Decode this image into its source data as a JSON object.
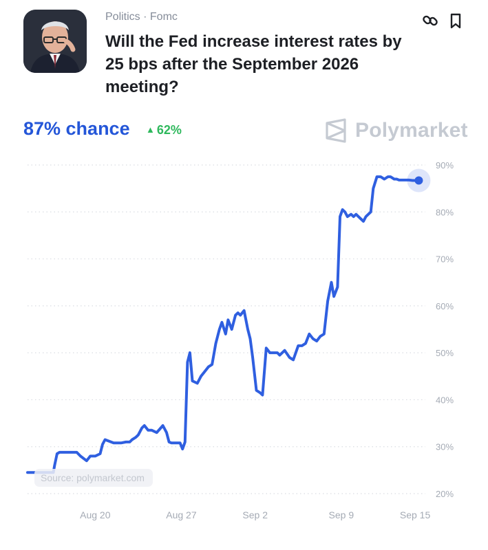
{
  "market": {
    "category": "Politics · Fomc",
    "title": "Will the Fed increase interest rates by 25 bps after the September 2026 meeting?",
    "chance_label": "87% chance",
    "chance_value": 87,
    "delta_label": "62%",
    "brand": "Polymarket",
    "source": "Source: polymarket.com"
  },
  "colors": {
    "line": "#2f5fe0",
    "chance": "#2456d8",
    "delta_up": "#2eb85c",
    "gridline": "#d9dce2",
    "tick_text": "#a4aab4"
  },
  "icons": {
    "link": "link-icon",
    "bookmark": "bookmark-icon",
    "brand": "polymarket-logo-icon"
  },
  "chart_data": {
    "type": "line",
    "x_tick_labels": [
      "Aug 20",
      "Aug 27",
      "Sep 2",
      "Sep 9",
      "Sep 15"
    ],
    "x_tick_days": [
      0,
      7,
      13,
      20,
      26
    ],
    "y_tick_labels": [
      "90%",
      "80%",
      "70%",
      "60%",
      "50%",
      "40%",
      "30%",
      "20%"
    ],
    "y_tick_values": [
      90,
      80,
      70,
      60,
      50,
      40,
      30,
      20
    ],
    "ylim": [
      20,
      90
    ],
    "xlim_days": [
      -5.5,
      26.5
    ],
    "grid": true,
    "series": [
      {
        "x": [
          -5.5,
          -3.4,
          -3.3,
          -3.1,
          -2.9,
          -2.5,
          -2.0,
          -1.5,
          -1.2,
          -0.7,
          -0.4,
          0.0,
          0.4,
          0.6,
          0.8,
          1.5,
          2.1,
          2.5,
          2.8,
          3.0,
          3.3,
          3.5,
          3.8,
          4.0,
          4.3,
          4.6,
          5.0,
          5.5,
          5.8,
          6.0,
          6.2,
          6.5,
          6.9,
          7.1,
          7.3,
          7.5,
          7.7,
          7.9,
          8.3,
          8.6,
          8.9,
          9.2,
          9.5,
          9.8,
          10.1,
          10.3,
          10.6,
          10.8,
          11.1,
          11.4,
          11.6,
          11.8,
          12.1,
          12.4,
          12.6,
          12.8,
          13.1,
          13.4,
          13.6,
          13.9,
          14.2,
          14.5,
          14.8,
          15.0,
          15.4,
          15.8,
          16.1,
          16.3,
          16.5,
          16.8,
          17.1,
          17.4,
          17.7,
          18.0,
          18.3,
          18.6,
          18.9,
          19.2,
          19.4,
          19.7,
          19.9,
          20.1,
          20.3,
          20.5,
          20.8,
          21.0,
          21.2,
          21.4,
          21.6,
          21.8,
          22.0,
          22.2,
          22.4,
          22.6,
          22.9,
          23.2,
          23.5,
          23.8,
          24.0,
          24.3,
          24.5,
          24.7,
          25.0,
          25.3,
          25.5,
          25.8,
          26.0,
          26.3
        ],
        "y": [
          24.5,
          24.5,
          26.0,
          28.5,
          28.8,
          28.8,
          28.8,
          28.8,
          28.0,
          27.0,
          28.0,
          28.0,
          28.5,
          30.5,
          31.5,
          30.8,
          30.8,
          31.0,
          31.0,
          31.5,
          32.0,
          32.5,
          34.0,
          34.5,
          33.5,
          33.5,
          33.0,
          34.5,
          33.0,
          31.0,
          30.8,
          30.8,
          30.8,
          29.5,
          31.0,
          48.0,
          50.0,
          44.0,
          43.5,
          45.0,
          46.0,
          47.0,
          47.5,
          52.0,
          55.0,
          56.5,
          54.0,
          57.0,
          55.0,
          58.0,
          58.5,
          58.0,
          59.0,
          55.0,
          53.0,
          49.0,
          42.0,
          41.5,
          41.0,
          51.0,
          50.0,
          50.0,
          50.0,
          49.5,
          50.5,
          49.0,
          48.5,
          50.0,
          51.5,
          51.5,
          52.0,
          54.0,
          53.0,
          52.5,
          53.5,
          54.0,
          61.0,
          65.0,
          62.0,
          64.0,
          79.0,
          80.5,
          80.0,
          79.0,
          79.5,
          79.0,
          79.5,
          79.0,
          78.5,
          78.0,
          79.0,
          79.5,
          80.0,
          85.0,
          87.5,
          87.5,
          87.0,
          87.5,
          87.5,
          87.0,
          87.0,
          86.8,
          86.8,
          86.8,
          86.8,
          86.7,
          86.7,
          86.7
        ]
      }
    ]
  }
}
